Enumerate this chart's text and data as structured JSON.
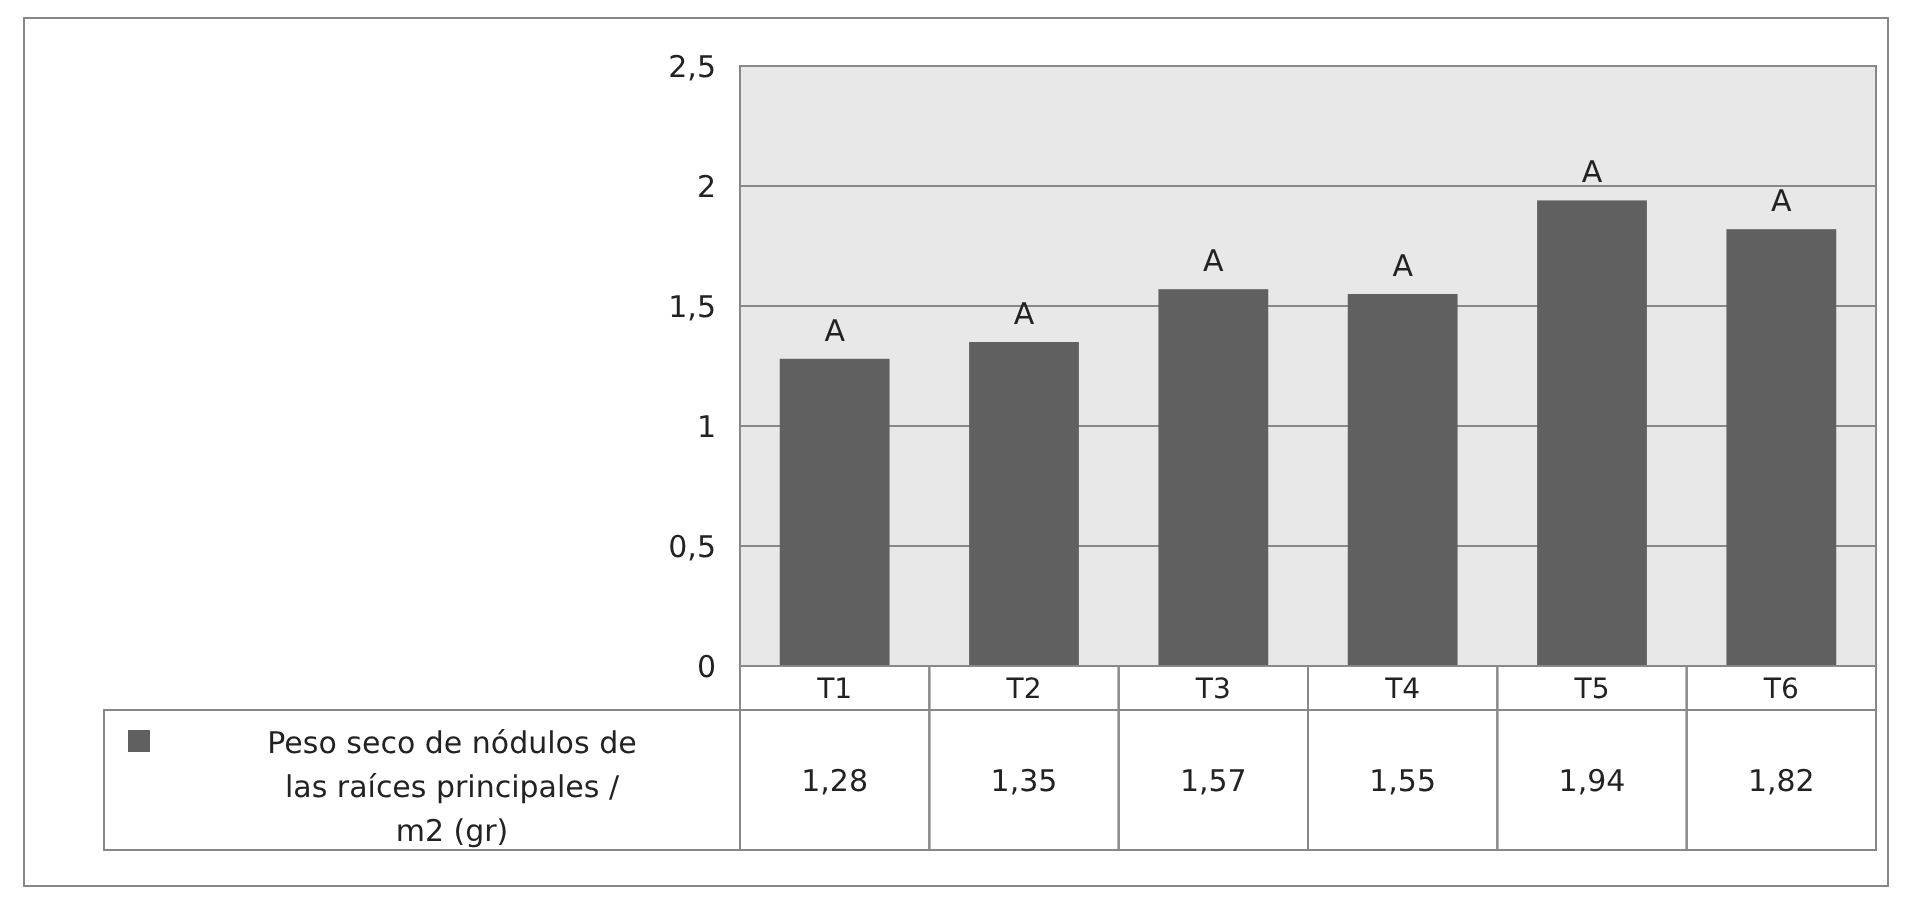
{
  "chart_data": {
    "type": "bar",
    "categories": [
      "T1",
      "T2",
      "T3",
      "T4",
      "T5",
      "T6"
    ],
    "series": [
      {
        "name": "Peso seco de nódulos de las raíces principales / m2 (gr)",
        "color": "#606060",
        "values": [
          1.28,
          1.35,
          1.57,
          1.55,
          1.94,
          1.82
        ],
        "value_labels": [
          "1,28",
          "1,35",
          "1,57",
          "1,55",
          "1,94",
          "1,82"
        ]
      }
    ],
    "ylim": [
      0,
      2.5
    ],
    "yticks": [
      0,
      {
        "value": 0.5,
        "label": "0,5"
      },
      1,
      {
        "value": 1.5,
        "label": "1,5"
      },
      2,
      {
        "value": 2.5,
        "label": "2,5"
      }
    ],
    "grid": "y",
    "legend": "bottom left",
    "annotations": [
      {
        "text": "A",
        "x": "T1",
        "y": 1.28
      },
      {
        "text": "A",
        "x": "T2",
        "y": 1.35
      },
      {
        "text": "A",
        "x": "T3",
        "y": 1.57
      },
      {
        "text": "A",
        "x": "T4",
        "y": 1.55
      },
      {
        "text": "A",
        "x": "T5",
        "y": 1.94
      },
      {
        "text": "A",
        "x": "T6",
        "y": 1.82
      }
    ]
  }
}
